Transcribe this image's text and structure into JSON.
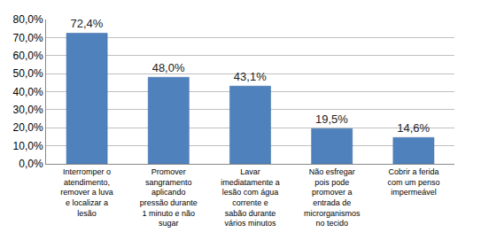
{
  "chart_data": {
    "type": "bar",
    "categories": [
      "Interromper o atendimento, remover a luva e localizar a lesão",
      "Promover sangramento aplicando pressão durante 1 minuto e não sugar",
      "Lavar imediatamente a lesão com água corrente e sabão durante vários minutos",
      "Não esfregar pois pode promover a entrada de microrganismos no tecido",
      "Cobrir a ferida com um penso impermeável"
    ],
    "values": [
      72.4,
      48.0,
      43.1,
      19.5,
      14.6
    ],
    "value_labels": [
      "72,4%",
      "48,0%",
      "43,1%",
      "19,5%",
      "14,6%"
    ],
    "color": "#4f81bd",
    "ylim": [
      0,
      80
    ],
    "yticks": [
      {
        "value": 0,
        "label": "0,0%"
      },
      {
        "value": 10,
        "label": "10,0%"
      },
      {
        "value": 20,
        "label": "20,0%"
      },
      {
        "value": 30,
        "label": "30,0%"
      },
      {
        "value": 40,
        "label": "40,0%"
      },
      {
        "value": 50,
        "label": "50,0%"
      },
      {
        "value": 60,
        "label": "60,0%"
      },
      {
        "value": 70,
        "label": "70,0%"
      },
      {
        "value": 80,
        "label": "80,0%"
      }
    ],
    "grid": true,
    "data_labels": true
  }
}
